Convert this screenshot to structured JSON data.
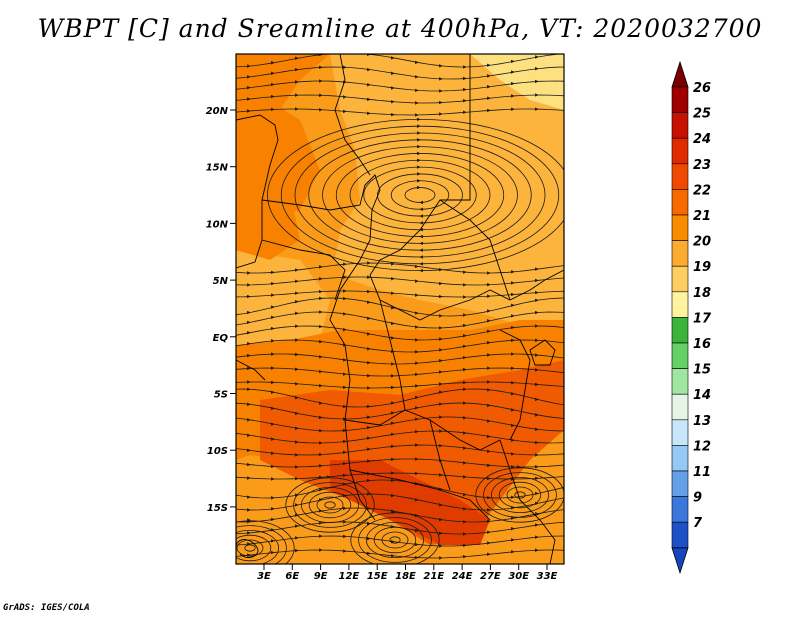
{
  "title": "WBPT [C] and Sreamline at 400hPa, VT: 2020032700",
  "footer": "GrADS: IGES/COLA",
  "lat_labels": [
    "20N",
    "15N",
    "10N",
    "5N",
    "EQ",
    "5S",
    "10S",
    "15S"
  ],
  "lon_labels": [
    "3E",
    "6E",
    "9E",
    "12E",
    "15E",
    "18E",
    "21E",
    "24E",
    "27E",
    "30E",
    "33E"
  ],
  "colorbar": {
    "labels": [
      "26",
      "25",
      "24",
      "23",
      "22",
      "21",
      "20",
      "19",
      "18",
      "17",
      "16",
      "15",
      "14",
      "13",
      "12",
      "11",
      "9",
      "7"
    ],
    "colors": [
      "#a00000",
      "#c81000",
      "#e02a00",
      "#f04a00",
      "#f86a00",
      "#fa8c00",
      "#fcac30",
      "#fdcf60",
      "#fff3a0",
      "#3cb43c",
      "#64d264",
      "#a0e6a0",
      "#e6f5e6",
      "#c8e6fa",
      "#96c8f5",
      "#64a0e6",
      "#3c78dc",
      "#1e50c8"
    ],
    "top_arrow_color": "#780000",
    "bottom_arrow_color": "#1446be"
  },
  "field_colors": {
    "c20": "#fcb43c",
    "c21": "#fa9c1a",
    "c22": "#f88200",
    "c23": "#f05a00",
    "c24": "#e03c00",
    "c19": "#fde080"
  }
}
